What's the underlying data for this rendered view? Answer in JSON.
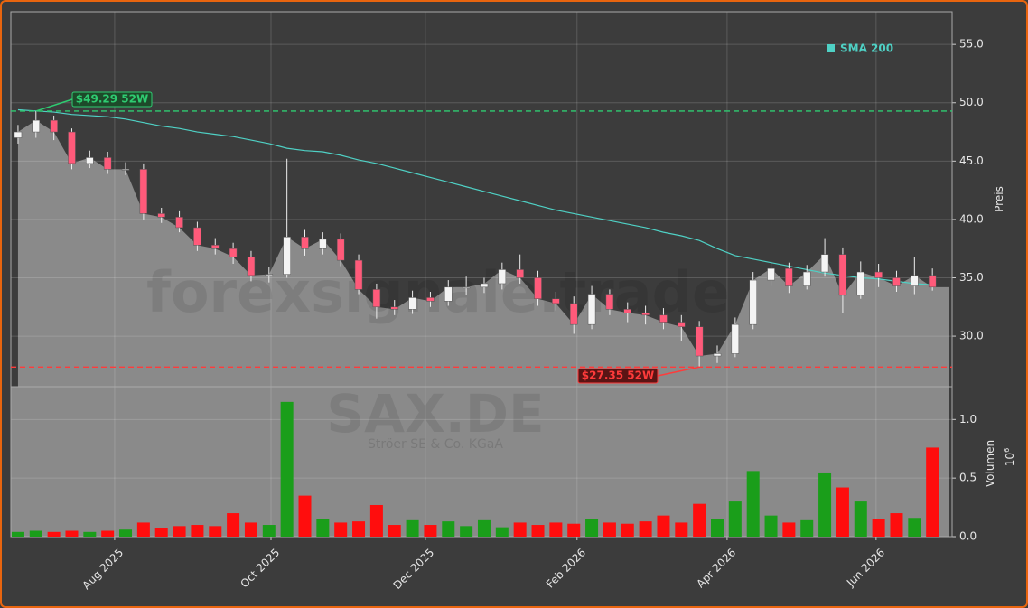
{
  "chart_data": [
    {
      "type": "candlestick",
      "watermark": "forexsignale.trade",
      "symbol": "SAX.DE",
      "company": "Ströer SE & Co. KGaA",
      "ylabel": "Preis",
      "x": [
        0,
        1,
        2,
        3,
        4,
        5,
        6,
        7,
        8,
        9,
        10,
        11,
        12,
        13,
        14,
        15,
        16,
        17,
        18,
        19,
        20,
        21,
        22,
        23,
        24,
        25,
        26,
        27,
        28,
        29,
        30,
        31,
        32,
        33,
        34,
        35,
        36,
        37,
        38,
        39,
        40,
        41,
        42,
        43,
        44,
        45,
        46,
        47,
        48,
        49,
        50,
        51
      ],
      "xlim": [
        -0.4,
        52.1
      ],
      "xticks": [
        {
          "value": 5.39,
          "label": "Aug 2025"
        },
        {
          "value": 14.11,
          "label": "Oct 2025"
        },
        {
          "value": 22.72,
          "label": "Dec 2025"
        },
        {
          "value": 31.18,
          "label": "Feb 2026"
        },
        {
          "value": 39.55,
          "label": "Apr 2026"
        },
        {
          "value": 47.86,
          "label": "Jun 2026"
        }
      ],
      "ylim": [
        25.67,
        57.8
      ],
      "yticks": [
        {
          "value": 30,
          "label": "30.0"
        },
        {
          "value": 35,
          "label": "35.0"
        },
        {
          "value": 40,
          "label": "40.0"
        },
        {
          "value": 45,
          "label": "45.0"
        },
        {
          "value": 50,
          "label": "50.0"
        },
        {
          "value": 55,
          "label": "55.0"
        }
      ],
      "grid": true,
      "up_color": "#f4f4f4",
      "down_color": "#ff5a7a",
      "area_color": "#8a8a8a",
      "open": [
        47.0,
        47.5,
        48.5,
        47.5,
        44.8,
        45.3,
        44.3,
        44.3,
        40.5,
        40.2,
        39.3,
        37.8,
        37.5,
        36.8,
        35.2,
        35.3,
        38.5,
        37.5,
        38.3,
        36.5,
        34.0,
        32.5,
        32.3,
        33.3,
        33.0,
        34.2,
        34.2,
        34.5,
        35.7,
        35.0,
        33.2,
        32.8,
        31.0,
        33.6,
        32.3,
        32.0,
        31.8,
        31.2,
        30.8,
        28.3,
        28.5,
        31.0,
        34.8,
        35.8,
        34.3,
        35.5,
        37.0,
        33.5,
        35.5,
        35.0,
        34.3,
        35.2
      ],
      "high": [
        48.1,
        49.29,
        48.9,
        47.8,
        45.9,
        45.8,
        44.9,
        44.8,
        41.0,
        40.7,
        39.8,
        38.4,
        38.0,
        37.3,
        35.9,
        45.2,
        39.1,
        38.9,
        38.8,
        37.0,
        34.5,
        33.1,
        33.9,
        33.8,
        34.8,
        35.1,
        35.0,
        36.3,
        37.0,
        35.6,
        33.8,
        33.4,
        34.3,
        34.0,
        32.9,
        32.6,
        32.4,
        31.8,
        31.3,
        29.2,
        31.6,
        35.5,
        36.4,
        36.3,
        36.1,
        38.4,
        37.6,
        36.4,
        36.2,
        35.6,
        36.8,
        35.8
      ],
      "low": [
        46.5,
        47.0,
        46.8,
        44.3,
        44.4,
        43.9,
        43.8,
        40.0,
        39.7,
        38.9,
        37.3,
        37.0,
        36.2,
        34.7,
        34.6,
        35.0,
        36.9,
        37.0,
        36.0,
        33.6,
        31.5,
        31.8,
        31.9,
        32.5,
        32.6,
        33.5,
        33.7,
        34.0,
        34.5,
        32.6,
        32.2,
        30.2,
        30.6,
        31.8,
        31.2,
        31.0,
        30.6,
        29.6,
        27.35,
        27.7,
        28.2,
        30.6,
        34.3,
        33.7,
        34.0,
        35.1,
        32.0,
        33.2,
        34.2,
        33.8,
        33.6,
        33.9
      ],
      "close": [
        47.5,
        48.5,
        47.5,
        44.8,
        45.3,
        44.3,
        44.3,
        40.5,
        40.2,
        39.3,
        37.8,
        37.5,
        36.8,
        35.2,
        35.3,
        38.5,
        37.5,
        38.3,
        36.5,
        34.0,
        32.5,
        32.3,
        33.3,
        33.0,
        34.2,
        34.2,
        34.5,
        35.7,
        35.0,
        33.2,
        32.8,
        31.0,
        33.6,
        32.3,
        32.0,
        31.8,
        31.2,
        30.8,
        28.3,
        28.5,
        31.0,
        34.8,
        35.8,
        34.3,
        35.5,
        37.0,
        33.5,
        35.5,
        35.0,
        34.3,
        35.2,
        34.2
      ],
      "series": [
        {
          "name": "SMA 200",
          "color": "#4fd1c5",
          "values": [
            49.4,
            49.3,
            49.2,
            49.0,
            48.9,
            48.8,
            48.6,
            48.3,
            48.0,
            47.8,
            47.5,
            47.3,
            47.1,
            46.8,
            46.5,
            46.1,
            45.9,
            45.8,
            45.5,
            45.1,
            44.8,
            44.4,
            44.0,
            43.6,
            43.2,
            42.8,
            42.4,
            42.0,
            41.6,
            41.2,
            40.8,
            40.5,
            40.2,
            39.9,
            39.6,
            39.3,
            38.9,
            38.6,
            38.2,
            37.5,
            36.9,
            36.6,
            36.3,
            36.0,
            35.7,
            35.4,
            35.2,
            35.0,
            34.9,
            34.7,
            34.5,
            34.4
          ]
        }
      ],
      "annotations": [
        {
          "value": 49.29,
          "label": "$49.29 52W",
          "color": "#2ecc71"
        },
        {
          "value": 27.35,
          "label": "$27.35 52W",
          "color": "#ff3b3b"
        }
      ]
    },
    {
      "type": "bar",
      "ylabel": "Volumen",
      "offset_label": "10",
      "offset_exponent": "6",
      "ylim": [
        0,
        1.28
      ],
      "yticks": [
        {
          "value": 0,
          "label": "0.0"
        },
        {
          "value": 0.5,
          "label": "0.5"
        },
        {
          "value": 1,
          "label": "1.0"
        }
      ],
      "up_color": "#1a9e1a",
      "down_color": "#ff0d0d",
      "values": [
        0.04,
        0.05,
        0.04,
        0.05,
        0.04,
        0.05,
        0.06,
        0.12,
        0.07,
        0.09,
        0.1,
        0.09,
        0.2,
        0.12,
        0.1,
        1.15,
        0.35,
        0.15,
        0.12,
        0.13,
        0.27,
        0.1,
        0.14,
        0.1,
        0.13,
        0.09,
        0.14,
        0.08,
        0.12,
        0.1,
        0.12,
        0.11,
        0.15,
        0.12,
        0.11,
        0.13,
        0.18,
        0.12,
        0.28,
        0.15,
        0.3,
        0.56,
        0.18,
        0.12,
        0.14,
        0.54,
        0.42,
        0.3,
        0.15,
        0.2,
        0.16,
        0.76
      ]
    }
  ]
}
